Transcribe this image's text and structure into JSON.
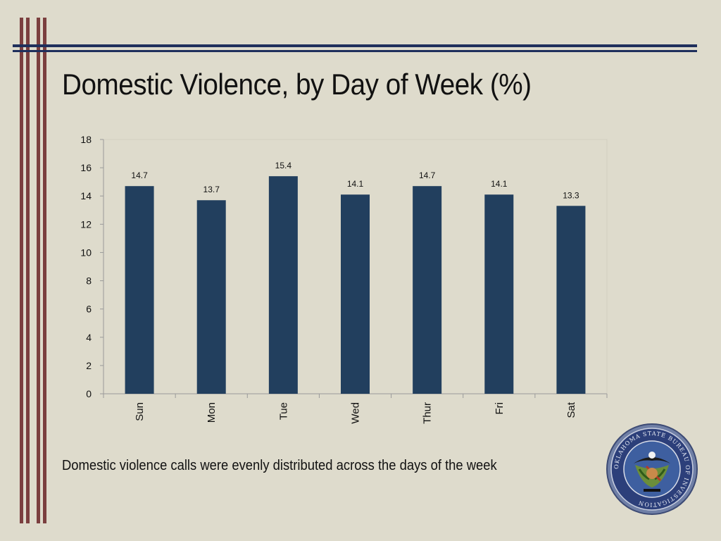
{
  "slide": {
    "title": "Domestic Violence, by Day of Week (%)",
    "caption": "Domestic violence calls were evenly distributed across the days of the week"
  },
  "colors": {
    "background": "#dedbcc",
    "bar": "#223f5e",
    "frame_vertical": "#7b3f3f",
    "frame_horizontal": "#1f2f5c"
  },
  "seal": {
    "icon": "oklahoma-state-bureau-of-investigation-seal-icon",
    "text": "OKLAHOMA STATE BUREAU OF INVESTIGATION"
  },
  "chart_data": {
    "type": "bar",
    "categories": [
      "Sun",
      "Mon",
      "Tue",
      "Wed",
      "Thur",
      "Fri",
      "Sat"
    ],
    "values": [
      14.7,
      13.7,
      15.4,
      14.1,
      14.7,
      14.1,
      13.3
    ],
    "data_labels": [
      "14.7",
      "13.7",
      "15.4",
      "14.1",
      "14.7",
      "14.1",
      "13.3"
    ],
    "title": "",
    "xlabel": "",
    "ylabel": "",
    "ylim": [
      0,
      18
    ],
    "yticks": [
      0,
      2,
      4,
      6,
      8,
      10,
      12,
      14,
      16,
      18
    ],
    "grid": false,
    "legend": "none",
    "x_tick_rotation": "vertical"
  }
}
